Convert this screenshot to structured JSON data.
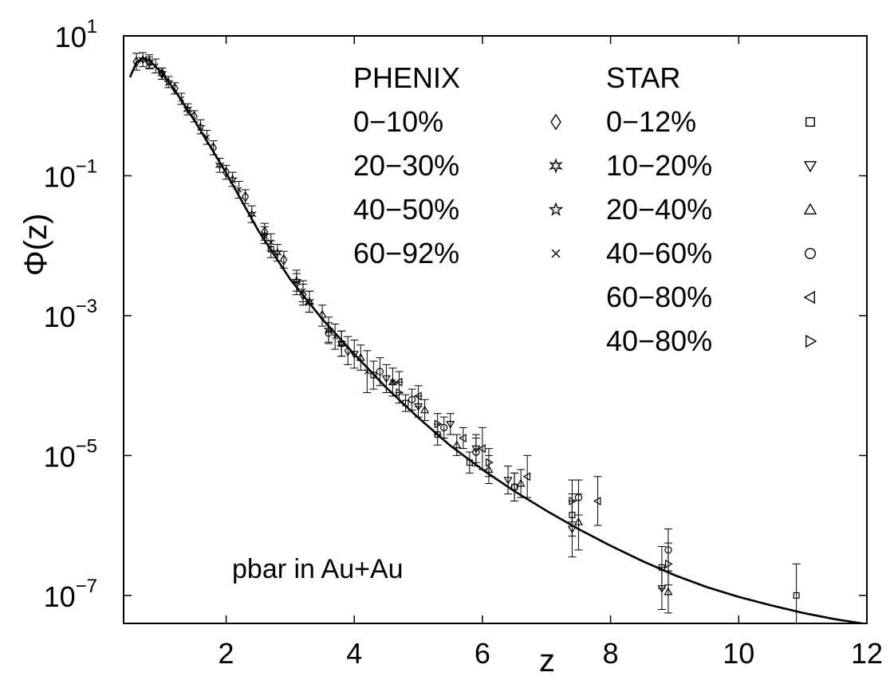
{
  "chart_data": {
    "type": "scatter",
    "title": "",
    "xlabel": "z",
    "ylabel": "Φ(z)",
    "xlim": [
      0.4,
      12
    ],
    "ylim": [
      -7.4,
      1.0
    ],
    "y_scale": "log",
    "grid": false,
    "x_ticks": [
      {
        "value": 2,
        "label": "2"
      },
      {
        "value": 4,
        "label": "4"
      },
      {
        "value": 6,
        "label": "6"
      },
      {
        "value": 8,
        "label": "8"
      },
      {
        "value": 10,
        "label": "10"
      },
      {
        "value": 12,
        "label": "12"
      }
    ],
    "y_ticks": [
      {
        "exp": 1,
        "base": "10",
        "sup": "1"
      },
      {
        "exp": -1,
        "base": "10",
        "sup": "−1"
      },
      {
        "exp": -3,
        "base": "10",
        "sup": "−3"
      },
      {
        "exp": -5,
        "base": "10",
        "sup": "−5"
      },
      {
        "exp": -7,
        "base": "10",
        "sup": "−7"
      }
    ],
    "annotation": "pbar in Au+Au",
    "legend": {
      "placement": "top-right",
      "groups": [
        {
          "title": "PHENIX",
          "entries": [
            {
              "label": "0−10%",
              "marker": "diamond"
            },
            {
              "label": "20−30%",
              "marker": "star6"
            },
            {
              "label": "40−50%",
              "marker": "star5"
            },
            {
              "label": "60−92%",
              "marker": "x"
            }
          ]
        },
        {
          "title": "STAR",
          "entries": [
            {
              "label": "0−12%",
              "marker": "square"
            },
            {
              "label": "10−20%",
              "marker": "triangle-down"
            },
            {
              "label": "20−40%",
              "marker": "triangle-up"
            },
            {
              "label": "40−60%",
              "marker": "circle"
            },
            {
              "label": "60−80%",
              "marker": "triangle-left"
            },
            {
              "label": "40−80%",
              "marker": "triangle-right"
            }
          ]
        }
      ]
    },
    "fit_curve": {
      "name": "",
      "x": [
        0.5,
        0.6,
        0.7,
        0.8,
        1.0,
        1.2,
        1.5,
        2.0,
        2.5,
        3.0,
        3.5,
        4.0,
        4.5,
        5.0,
        5.5,
        6.0,
        6.5,
        7.0,
        7.5,
        8.0,
        8.5,
        9.0,
        9.5,
        10.0,
        10.5,
        11.0,
        11.5,
        12.0
      ],
      "log10_y": [
        0.41,
        0.62,
        0.68,
        0.65,
        0.47,
        0.22,
        -0.2,
        -0.96,
        -1.78,
        -2.48,
        -3.05,
        -3.55,
        -4.03,
        -4.46,
        -4.86,
        -5.2,
        -5.51,
        -5.79,
        -6.05,
        -6.29,
        -6.51,
        -6.71,
        -6.88,
        -7.02,
        -7.14,
        -7.25,
        -7.34,
        -7.41
      ]
    },
    "series": [
      {
        "name": "PHENIX 0−10%",
        "marker": "diamond",
        "x": [
          0.6,
          0.8,
          1.0,
          1.2,
          1.5,
          1.8,
          2.0,
          2.3,
          2.6,
          2.9,
          3.2,
          3.5,
          3.9
        ],
        "log10_y": [
          0.63,
          0.62,
          0.46,
          0.25,
          -0.15,
          -0.6,
          -0.95,
          -1.3,
          -1.8,
          -2.2,
          -2.7,
          -3.0,
          -3.5
        ],
        "err_log10": [
          0.12,
          0.08,
          0.08,
          0.08,
          0.08,
          0.1,
          0.1,
          0.1,
          0.12,
          0.12,
          0.15,
          0.15,
          0.2
        ]
      },
      {
        "name": "PHENIX 20−30%",
        "marker": "star6",
        "x": [
          0.7,
          1.0,
          1.4,
          1.9,
          2.4,
          2.8,
          3.3,
          3.8
        ],
        "log10_y": [
          0.66,
          0.46,
          -0.05,
          -0.85,
          -1.55,
          -2.1,
          -2.8,
          -3.4
        ],
        "err_log10": [
          0.1,
          0.08,
          0.08,
          0.1,
          0.12,
          0.12,
          0.15,
          0.18
        ]
      },
      {
        "name": "PHENIX 40−50%",
        "marker": "star5",
        "x": [
          0.8,
          1.1,
          1.6,
          2.1,
          2.6,
          3.1,
          3.6
        ],
        "log10_y": [
          0.63,
          0.34,
          -0.3,
          -1.05,
          -1.85,
          -2.5,
          -3.2
        ],
        "err_log10": [
          0.1,
          0.08,
          0.1,
          0.1,
          0.12,
          0.15,
          0.18
        ]
      },
      {
        "name": "PHENIX 60−92%",
        "marker": "x",
        "x": [
          0.9,
          1.3,
          1.7,
          2.2,
          2.7,
          3.2,
          3.7,
          4.2,
          4.6
        ],
        "log10_y": [
          0.57,
          0.1,
          -0.45,
          -1.2,
          -1.95,
          -2.65,
          -3.3,
          -3.8,
          -3.95
        ],
        "err_log10": [
          0.1,
          0.08,
          0.1,
          0.12,
          0.12,
          0.15,
          0.18,
          0.3,
          0.0
        ]
      },
      {
        "name": "STAR 0−12%",
        "marker": "square",
        "x": [
          2.7,
          3.8,
          4.3,
          4.8,
          5.3,
          5.8,
          6.5,
          7.4,
          8.8,
          10.9
        ],
        "log10_y": [
          -2.05,
          -3.4,
          -3.85,
          -4.25,
          -4.7,
          -5.1,
          -5.45,
          -5.85,
          -6.6,
          -7.0
        ],
        "err_log10": [
          0.12,
          0.18,
          0.2,
          0.12,
          0.15,
          0.15,
          0.2,
          0.3,
          0.3,
          0.45
        ]
      },
      {
        "name": "STAR 10−20%",
        "marker": "triangle-down",
        "x": [
          3.1,
          4.0,
          4.5,
          5.0,
          5.5,
          5.9,
          6.4,
          7.4,
          8.8
        ],
        "log10_y": [
          -2.55,
          -3.55,
          -3.9,
          -4.3,
          -4.55,
          -4.9,
          -5.35,
          -6.05,
          -6.9
        ],
        "err_log10": [
          0.15,
          0.2,
          0.2,
          0.15,
          0.15,
          0.2,
          0.2,
          0.4,
          0.3
        ]
      },
      {
        "name": "STAR 20−40%",
        "marker": "triangle-up",
        "x": [
          3.3,
          4.1,
          4.6,
          5.1,
          5.6,
          6.1,
          6.6,
          7.5,
          8.9
        ],
        "log10_y": [
          -2.8,
          -3.6,
          -3.95,
          -4.35,
          -4.85,
          -5.2,
          -5.4,
          -5.95,
          -6.95
        ],
        "err_log10": [
          0.15,
          0.18,
          0.2,
          0.15,
          0.15,
          0.2,
          0.2,
          0.4,
          0.3
        ]
      },
      {
        "name": "STAR 40−60%",
        "marker": "circle",
        "x": [
          3.6,
          4.4,
          4.9,
          5.4,
          5.9,
          6.5,
          7.5,
          8.9
        ],
        "log10_y": [
          -3.25,
          -3.8,
          -4.2,
          -4.6,
          -4.95,
          -5.45,
          -5.6,
          -6.35
        ],
        "err_log10": [
          0.15,
          0.2,
          0.15,
          0.15,
          0.2,
          0.2,
          0.25,
          0.3
        ]
      },
      {
        "name": "STAR 60−80%",
        "marker": "triangle-left",
        "x": [
          4.7,
          5.0,
          5.7,
          6.0,
          6.7,
          7.8
        ],
        "log10_y": [
          -3.95,
          -4.15,
          -4.75,
          -4.9,
          -5.3,
          -5.65
        ],
        "err_log10": [
          0.15,
          0.15,
          0.15,
          0.3,
          0.3,
          0.35
        ]
      },
      {
        "name": "STAR 40−80%",
        "marker": "triangle-right",
        "x": [
          4.7,
          5.3,
          6.1,
          7.4,
          8.9
        ],
        "log10_y": [
          -4.1,
          -4.55,
          -5.1,
          -5.65,
          -6.55
        ],
        "err_log10": [
          0.15,
          0.15,
          0.2,
          0.3,
          0.3
        ]
      }
    ]
  }
}
